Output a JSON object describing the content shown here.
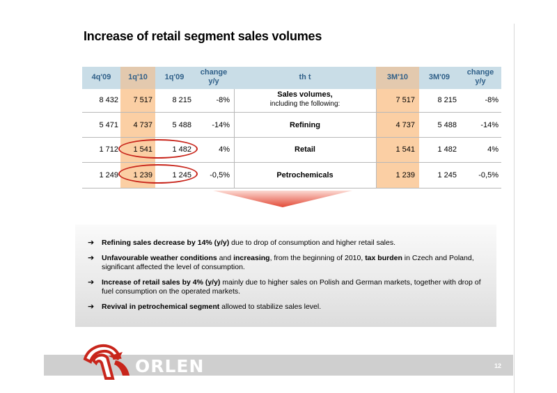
{
  "title": "Increase of retail segment sales volumes",
  "table": {
    "headers": {
      "h1": "4q'09",
      "h2": "1q'10",
      "h3": "1q'09",
      "h4_line1": "change",
      "h4_line2": "y/y",
      "unit": "th t",
      "h5": "3M'10",
      "h6": "3M'09",
      "h7_line1": "change",
      "h7_line2": "y/y"
    },
    "rows": [
      {
        "c1": "8 432",
        "c2": "7 517",
        "c3": "8 215",
        "c4": "-8%",
        "label": "Sales volumes,",
        "sublabel": "including the following:",
        "c5": "7 517",
        "c6": "8 215",
        "c7": "-8%"
      },
      {
        "c1": "5 471",
        "c2": "4 737",
        "c3": "5 488",
        "c4": "-14%",
        "label": "Refining",
        "c5": "4 737",
        "c6": "5 488",
        "c7": "-14%"
      },
      {
        "c1": "1 712",
        "c2": "1 541",
        "c3": "1 482",
        "c4": "4%",
        "label": "Retail",
        "c5": "1 541",
        "c6": "1 482",
        "c7": "4%"
      },
      {
        "c1": "1 249",
        "c2": "1 239",
        "c3": "1 245",
        "c4": "-0,5%",
        "label": "Petrochemicals",
        "c5": "1 239",
        "c6": "1 245",
        "c7": "-0,5%"
      }
    ]
  },
  "bullets": [
    {
      "bold": "Refining sales decrease by 14% (y/y)",
      "rest": " due to drop of consumption and higher retail sales."
    },
    {
      "bold1": "Unfavourable weather conditions",
      "mid1": " and ",
      "bold2": "increasing",
      "mid2": ", from the beginning of 2010, ",
      "bold3": "tax burden",
      "rest": " in Czech and Poland, significant affected the level of consumption."
    },
    {
      "bold": "Increase of retail sales by 4% (y/y)",
      "rest": " mainly due to higher sales on Polish and German markets, together with drop of fuel consumption on the operated markets."
    },
    {
      "bold": "Revival in petrochemical segment",
      "rest": " allowed to stabilize sales level."
    }
  ],
  "footer": {
    "logo_text": "ORLEN",
    "page_number": "12"
  },
  "colors": {
    "accent_red": "#c8251b",
    "highlight_orange": "#fbcfa4",
    "header_blue": "#c9dde7",
    "header_text": "#2f5f88"
  },
  "icons": {
    "bullet": "right-arrow-icon",
    "logo": "orlen-eagle-logo"
  }
}
